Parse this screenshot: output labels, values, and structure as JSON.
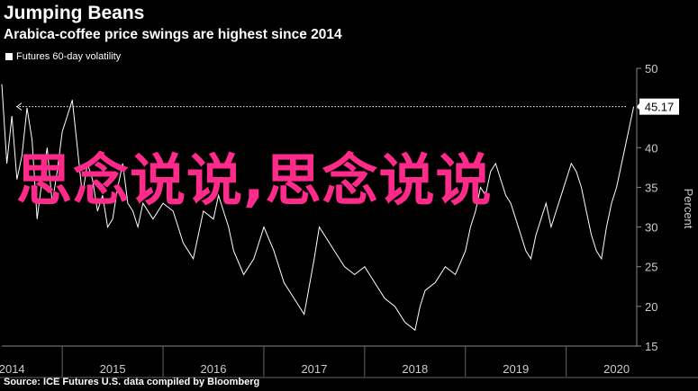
{
  "header": {
    "title": "Jumping Beans",
    "subtitle": "Arabica-coffee price swings are highest since 2014",
    "legend_label": "Futures 60-day volatility",
    "source": "Source: ICE Futures U.S. data compiled by Bloomberg"
  },
  "overlay": {
    "text": "思念说说,思念说说",
    "color": "#ff2a8a"
  },
  "chart_data": {
    "type": "line",
    "ylabel": "Percent",
    "ylim": [
      15,
      50
    ],
    "y_ticks": [
      15,
      20,
      25,
      30,
      35,
      40,
      45,
      50
    ],
    "x_range": [
      2013.9,
      2020.2
    ],
    "x_tick_labels": [
      "2014",
      "2015",
      "2016",
      "2017",
      "2018",
      "2019",
      "2020"
    ],
    "x_tick_positions": [
      2014,
      2015,
      2016,
      2017,
      2018,
      2019,
      2020
    ],
    "last_value": 45.17,
    "last_value_label": "45.17",
    "series": [
      {
        "name": "Futures 60-day volatility",
        "color": "#ffffff",
        "x": [
          2013.9,
          2013.95,
          2014.0,
          2014.05,
          2014.1,
          2014.15,
          2014.2,
          2014.25,
          2014.3,
          2014.35,
          2014.4,
          2014.45,
          2014.5,
          2014.55,
          2014.6,
          2014.65,
          2014.7,
          2014.75,
          2014.8,
          2014.85,
          2014.9,
          2014.95,
          2015.0,
          2015.05,
          2015.1,
          2015.15,
          2015.2,
          2015.25,
          2015.3,
          2015.4,
          2015.5,
          2015.6,
          2015.7,
          2015.8,
          2015.9,
          2016.0,
          2016.05,
          2016.1,
          2016.15,
          2016.2,
          2016.3,
          2016.4,
          2016.5,
          2016.6,
          2016.7,
          2016.8,
          2016.9,
          2017.0,
          2017.05,
          2017.1,
          2017.2,
          2017.3,
          2017.4,
          2017.5,
          2017.6,
          2017.7,
          2017.8,
          2017.9,
          2018.0,
          2018.05,
          2018.1,
          2018.2,
          2018.3,
          2018.4,
          2018.5,
          2018.55,
          2018.6,
          2018.65,
          2018.7,
          2018.75,
          2018.8,
          2018.85,
          2018.9,
          2018.95,
          2019.0,
          2019.05,
          2019.1,
          2019.15,
          2019.2,
          2019.25,
          2019.3,
          2019.35,
          2019.4,
          2019.45,
          2019.5,
          2019.55,
          2019.6,
          2019.65,
          2019.7,
          2019.75,
          2019.8,
          2019.85,
          2019.9,
          2019.95,
          2020.0,
          2020.05,
          2020.1,
          2020.17
        ],
        "values": [
          48,
          38,
          44,
          36,
          39,
          45,
          41,
          31,
          36,
          40,
          33,
          37,
          42,
          44,
          46,
          40,
          34,
          38,
          36,
          32,
          34,
          30,
          31,
          35,
          38,
          33,
          32,
          30,
          33,
          31,
          33,
          32,
          28,
          26,
          32,
          31,
          34,
          32,
          30,
          27,
          24,
          26,
          30,
          27,
          23,
          21,
          19,
          26,
          30,
          29,
          27,
          25,
          24,
          25,
          23,
          21,
          20,
          18,
          17,
          20,
          22,
          23,
          25,
          24,
          27,
          30,
          32,
          35,
          34,
          37,
          38,
          36,
          34,
          33,
          31,
          29,
          27,
          26,
          29,
          31,
          33,
          30,
          32,
          34,
          36,
          38,
          37,
          35,
          32,
          29,
          27,
          26,
          30,
          33,
          35,
          38,
          41,
          45.17
        ]
      }
    ]
  }
}
